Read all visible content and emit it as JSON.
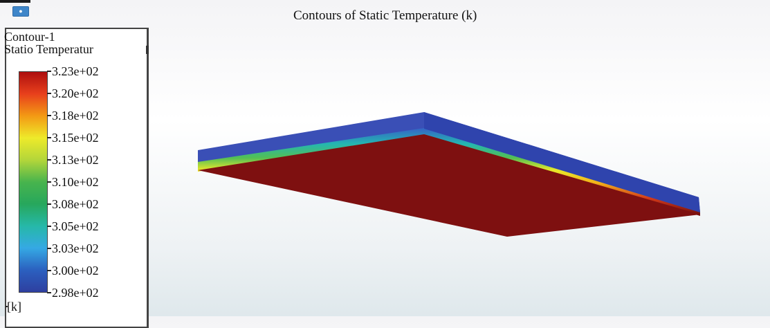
{
  "title": "Contours of Static Temperature (k)",
  "legend": {
    "name": "Contour-1",
    "variable": "Statio Temperatur",
    "unit": "[k]",
    "ticks": [
      "3.23e+02",
      "3.20e+02",
      "3.18e+02",
      "3.15e+02",
      "3.13e+02",
      "3.10e+02",
      "3.08e+02",
      "3.05e+02",
      "3.03e+02",
      "3.00e+02",
      "2.98e+02"
    ],
    "colormap": [
      "#ae0f0f",
      "#e8401c",
      "#f39a14",
      "#eeea2a",
      "#b3d63a",
      "#48b44d",
      "#27a75c",
      "#26b8a8",
      "#35a9e4",
      "#2b60bf",
      "#2e3fa0"
    ]
  },
  "toolbar": {
    "icon": "camera-view-icon"
  },
  "scene": {
    "object": "plate",
    "top_surface_color": "#3a4fb6",
    "side_surface_color": "#2f44ad",
    "bottom_surface_color": "#7e1010",
    "interface_gradient": [
      "#6b0c0c",
      "#d23a1a",
      "#f3b31a",
      "#e8e82a",
      "#53bf54",
      "#24b6b1",
      "#3563c6"
    ]
  }
}
